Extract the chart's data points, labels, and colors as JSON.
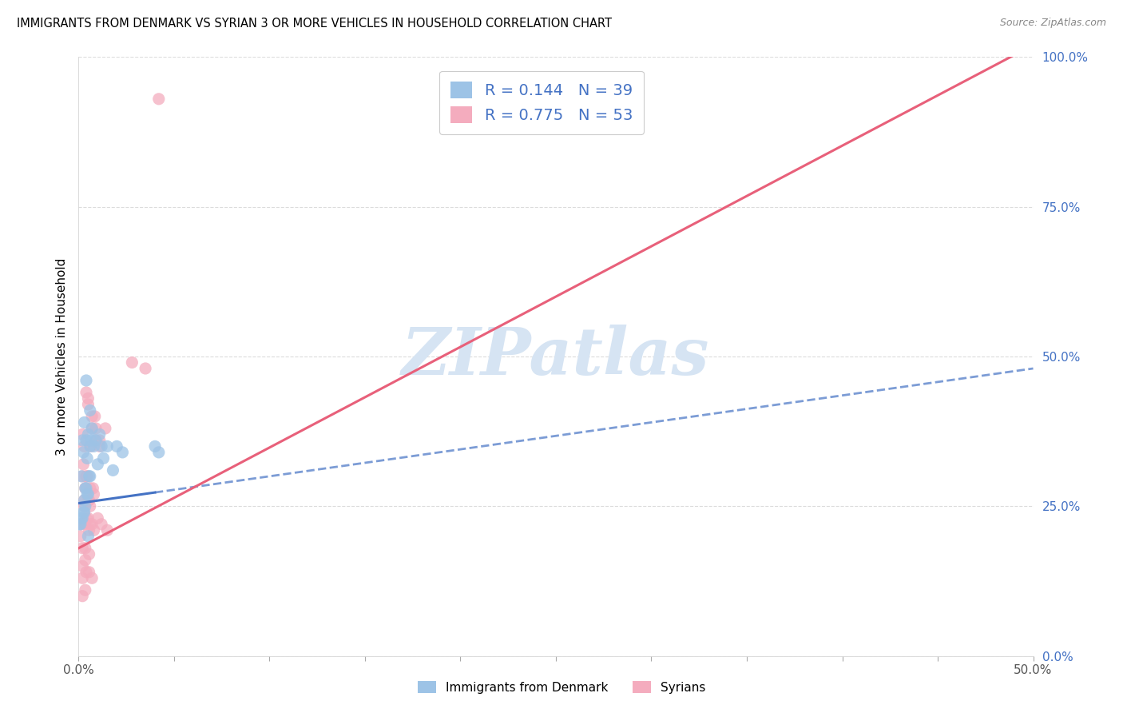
{
  "title": "IMMIGRANTS FROM DENMARK VS SYRIAN 3 OR MORE VEHICLES IN HOUSEHOLD CORRELATION CHART",
  "source": "Source: ZipAtlas.com",
  "ylabel": "3 or more Vehicles in Household",
  "yticks_labels": [
    "0.0%",
    "25.0%",
    "50.0%",
    "75.0%",
    "100.0%"
  ],
  "ytick_vals": [
    0,
    25,
    50,
    75,
    100
  ],
  "xticks_labels": [
    "0.0%",
    "",
    "",
    "",
    "",
    "",
    "",
    "",
    "",
    "",
    "50.0%"
  ],
  "xtick_vals": [
    0,
    5,
    10,
    15,
    20,
    25,
    30,
    35,
    40,
    45,
    50
  ],
  "xlim": [
    0,
    50
  ],
  "ylim": [
    0,
    100
  ],
  "denmark_R": 0.144,
  "denmark_N": 39,
  "syrian_R": 0.775,
  "syrian_N": 53,
  "denmark_color": "#9dc3e6",
  "syrian_color": "#f4acbe",
  "denmark_line_color": "#4472c4",
  "syrian_line_color": "#e8607a",
  "title_fontsize": 11,
  "source_fontsize": 9,
  "watermark_text": "ZIPatlas",
  "watermark_color": "#d6e4f3",
  "legend_text_color": "#4472c4",
  "background_color": "#ffffff",
  "grid_color": "#cccccc",
  "dk_line_x0": 0,
  "dk_line_y0": 25.5,
  "dk_line_x1": 50,
  "dk_line_y1": 48.0,
  "dk_solid_x_end": 4.0,
  "sy_line_x0": 0,
  "sy_line_y0": 18.0,
  "sy_line_x1": 50,
  "sy_line_y1": 102.0,
  "denmark_scatter_x": [
    0.4,
    0.6,
    0.7,
    0.9,
    1.1,
    1.3,
    1.5,
    1.8,
    2.0,
    2.3,
    0.3,
    0.5,
    0.8,
    1.0,
    1.2,
    0.2,
    0.4,
    0.6,
    0.25,
    0.45,
    0.65,
    0.15,
    0.35,
    0.55,
    0.1,
    0.2,
    0.3,
    0.4,
    0.5,
    0.6,
    0.05,
    0.15,
    0.25,
    0.35,
    0.45,
    4.0,
    4.2,
    0.3,
    0.5
  ],
  "denmark_scatter_y": [
    46,
    41,
    38,
    36,
    37,
    33,
    35,
    31,
    35,
    34,
    39,
    37,
    35,
    32,
    35,
    36,
    36,
    35,
    34,
    33,
    36,
    30,
    28,
    30,
    22,
    23,
    26,
    28,
    27,
    30,
    22,
    23,
    24,
    25,
    27,
    35,
    34,
    24,
    20
  ],
  "syrian_scatter_x": [
    0.2,
    0.4,
    0.5,
    0.7,
    0.9,
    1.1,
    1.4,
    0.3,
    0.5,
    0.7,
    0.9,
    1.1,
    0.25,
    0.45,
    0.65,
    0.85,
    0.35,
    0.55,
    0.75,
    0.2,
    0.4,
    0.6,
    0.8,
    0.3,
    0.5,
    0.15,
    0.35,
    0.55,
    0.1,
    0.3,
    0.5,
    0.7,
    3.5,
    0.4,
    0.6,
    0.8,
    1.0,
    1.2,
    1.5,
    0.2,
    0.35,
    0.55,
    2.8,
    0.2,
    0.35,
    0.2,
    0.4,
    4.2,
    0.6,
    0.2,
    0.35,
    0.55,
    0.7
  ],
  "syrian_scatter_y": [
    37,
    44,
    43,
    40,
    38,
    36,
    38,
    35,
    42,
    38,
    36,
    35,
    32,
    30,
    35,
    40,
    28,
    26,
    28,
    30,
    30,
    28,
    27,
    26,
    26,
    22,
    22,
    21,
    20,
    25,
    23,
    22,
    48,
    23,
    22,
    21,
    23,
    22,
    21,
    18,
    18,
    17,
    49,
    15,
    16,
    13,
    14,
    93,
    25,
    10,
    11,
    14,
    13
  ]
}
